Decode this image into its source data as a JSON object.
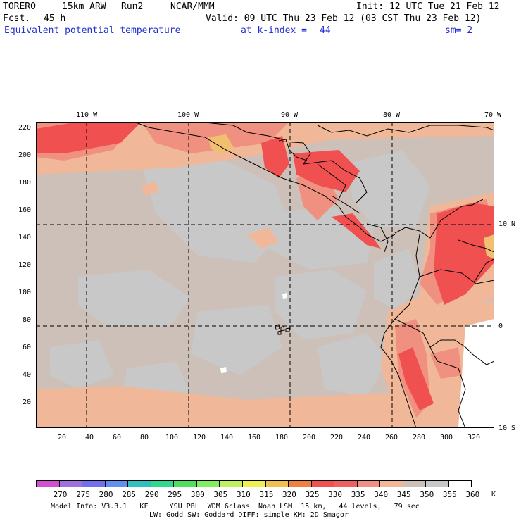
{
  "header": {
    "model": "TORERO",
    "resolution": "15km ARW",
    "run": "Run2",
    "center": "NCAR/MMM",
    "init": "Init: 12 UTC Tue 21 Feb 12",
    "fcst_label": "Fcst.",
    "fcst_hours": "45 h",
    "valid": "Valid: 09 UTC Thu 23 Feb 12 (03 CST Thu 23 Feb 12)",
    "field": "Equivalent potential temperature",
    "level": "at k-index =",
    "level_value": "44",
    "smoothing": "sm= 2"
  },
  "map": {
    "top_lon_labels": [
      "110 W",
      "100 W",
      "90 W",
      "80 W",
      "70 W"
    ],
    "right_lat_labels": [
      "10 N",
      "0",
      "10 S"
    ],
    "y_ticks": [
      "220",
      "200",
      "180",
      "160",
      "140",
      "120",
      "100",
      "80",
      "60",
      "40",
      "20"
    ],
    "x_ticks": [
      "20",
      "40",
      "60",
      "80",
      "100",
      "120",
      "140",
      "160",
      "180",
      "200",
      "220",
      "240",
      "260",
      "280",
      "300",
      "320"
    ]
  },
  "colorbar": {
    "labels": [
      "270",
      "275",
      "280",
      "285",
      "290",
      "295",
      "300",
      "305",
      "310",
      "315",
      "320",
      "325",
      "330",
      "335",
      "340",
      "345",
      "350",
      "355",
      "360"
    ],
    "unit": "K",
    "colors": [
      "#d050d0",
      "#a070e0",
      "#7070f0",
      "#6090f0",
      "#30c0c0",
      "#30d890",
      "#50e060",
      "#80f060",
      "#c0f060",
      "#f0f050",
      "#f0c050",
      "#f08040",
      "#f05050",
      "#f06060",
      "#f09080",
      "#f0b898",
      "#ccc0b8",
      "#c8c8c8",
      "#ffffff"
    ]
  },
  "footer": {
    "line1": "Model Info: V3.3.1   KF     YSU PBL  WDM 6class  Noah LSM  15 km,   44 levels,   79 sec",
    "line2": "LW: Godd SW: Goddard DIFF: simple KM: 2D Smagor"
  }
}
